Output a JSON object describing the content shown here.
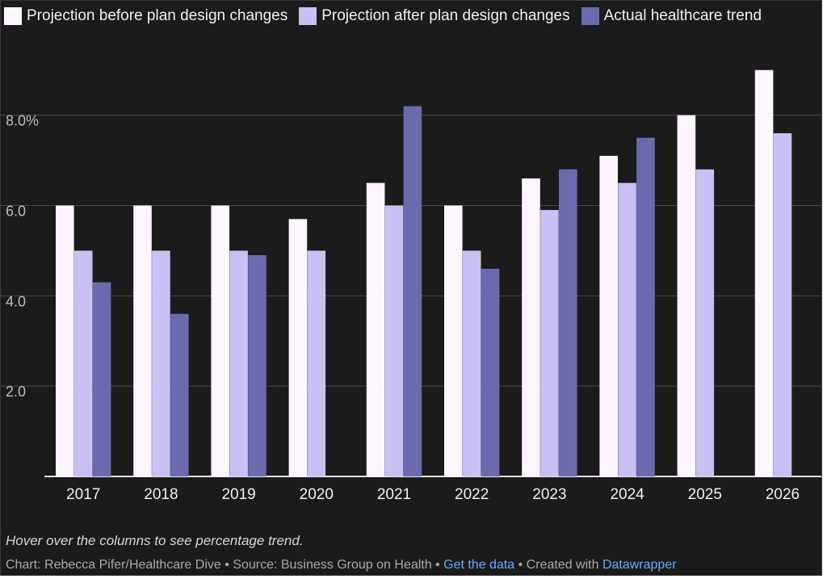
{
  "legend": [
    {
      "label": "Projection before plan design changes",
      "color": "#fdf6ff"
    },
    {
      "label": "Projection after plan design changes",
      "color": "#c9c1f3"
    },
    {
      "label": "Actual healthcare trend",
      "color": "#6c6aaf"
    }
  ],
  "chart_data": {
    "type": "bar",
    "categories": [
      "2017",
      "2018",
      "2019",
      "2020",
      "2021",
      "2022",
      "2023",
      "2024",
      "2025",
      "2026"
    ],
    "series": [
      {
        "name": "Projection before plan design changes",
        "color": "#fdf6ff",
        "values": [
          6.0,
          6.0,
          6.0,
          5.7,
          6.5,
          6.0,
          6.6,
          7.1,
          8.0,
          9.0
        ]
      },
      {
        "name": "Projection after plan design changes",
        "color": "#c9c1f3",
        "values": [
          5.0,
          5.0,
          5.0,
          5.0,
          6.0,
          5.0,
          5.9,
          6.5,
          6.8,
          7.6
        ]
      },
      {
        "name": "Actual healthcare trend",
        "color": "#6c6aaf",
        "values": [
          4.3,
          3.6,
          4.9,
          null,
          8.2,
          4.6,
          6.8,
          7.5,
          null,
          null
        ]
      }
    ],
    "yticks": [
      {
        "value": 2,
        "label": "2.0"
      },
      {
        "value": 4,
        "label": "4.0"
      },
      {
        "value": 6,
        "label": "6.0"
      },
      {
        "value": 8,
        "label": "8.0%"
      }
    ],
    "ylim": [
      0,
      9.8
    ],
    "grid": true
  },
  "footer": {
    "note": "Hover over the columns to see percentage trend.",
    "credit_prefix": "Chart: Rebecca Pifer/Healthcare Dive • Source: Business Group on Health • ",
    "get_data_label": "Get the data",
    "created_with_prefix": " • Created with ",
    "datawrapper_label": "Datawrapper"
  }
}
